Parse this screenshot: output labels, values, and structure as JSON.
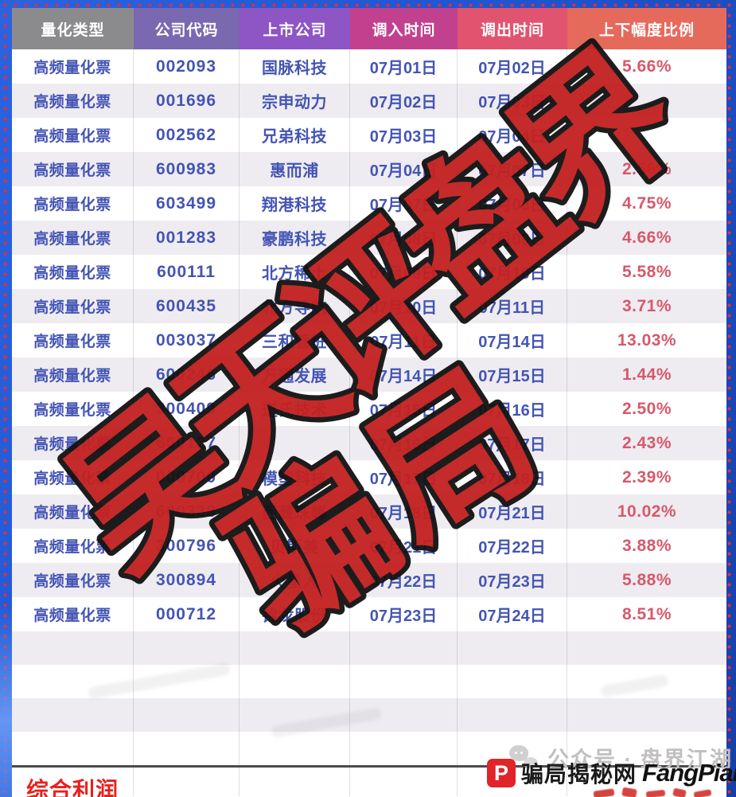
{
  "table": {
    "headers": [
      {
        "label": "量化类型",
        "color": "#8b8b8d"
      },
      {
        "label": "公司代码",
        "color": "#7a68b0"
      },
      {
        "label": "上市公司",
        "color": "#8e55c5"
      },
      {
        "label": "调入时间",
        "color": "#c2418e"
      },
      {
        "label": "调出时间",
        "color": "#e0546f"
      },
      {
        "label": "上下幅度比例",
        "color": "#e66a5c"
      }
    ],
    "rows": [
      {
        "type": "高频量化票",
        "code": "002093",
        "company": "国脉科技",
        "date_in": "07月01日",
        "date_out": "07月02日",
        "pct": "5.66%"
      },
      {
        "type": "高频量化票",
        "code": "001696",
        "company": "宗申动力",
        "date_in": "07月02日",
        "date_out": "07月03日",
        "pct": ""
      },
      {
        "type": "高频量化票",
        "code": "002562",
        "company": "兄弟科技",
        "date_in": "07月03日",
        "date_out": "07月04日",
        "pct": ""
      },
      {
        "type": "高频量化票",
        "code": "600983",
        "company": "惠而浦",
        "date_in": "07月04日",
        "date_out": "07月07日",
        "pct": "2.56%"
      },
      {
        "type": "高频量化票",
        "code": "603499",
        "company": "翔港科技",
        "date_in": "07月07日",
        "date_out": "07月08日",
        "pct": "4.75%"
      },
      {
        "type": "高频量化票",
        "code": "001283",
        "company": "豪鹏科技",
        "date_in": "07月08日",
        "date_out": "07月09日",
        "pct": "4.66%"
      },
      {
        "type": "高频量化票",
        "code": "600111",
        "company": "北方稀土",
        "date_in": "07月09日",
        "date_out": "07月10日",
        "pct": "5.58%"
      },
      {
        "type": "高频量化票",
        "code": "600435",
        "company": "北方导航",
        "date_in": "07月10日",
        "date_out": "07月11日",
        "pct": "3.71%"
      },
      {
        "type": "高频量化票",
        "code": "003037",
        "company": "三和管桩",
        "date_in": "07月11日",
        "date_out": "07月14日",
        "pct": "13.03%"
      },
      {
        "type": "高频量化票",
        "code": "600246",
        "company": "万通发展",
        "date_in": "07月14日",
        "date_out": "07月15日",
        "pct": "1.44%"
      },
      {
        "type": "高频量化票",
        "code": "300409",
        "company": "道氏技术",
        "date_in": "07月15日",
        "date_out": "07月16日",
        "pct": "2.50%"
      },
      {
        "type": "高频量化票",
        "code": "600127",
        "company": "",
        "date_in": "07月16日",
        "date_out": "07月17日",
        "pct": "2.43%"
      },
      {
        "type": "高频量化票",
        "code": "000700",
        "company": "模塑科技",
        "date_in": "07月17日",
        "date_out": "07月18日",
        "pct": "2.39%"
      },
      {
        "type": "高频量化票",
        "code": "600338",
        "company": "西藏珠峰",
        "date_in": "07月18日",
        "date_out": "07月21日",
        "pct": "10.02%"
      },
      {
        "type": "高频量化票",
        "code": "300796",
        "company": "贝斯美",
        "date_in": "07月21日",
        "date_out": "07月22日",
        "pct": "3.88%"
      },
      {
        "type": "高频量化票",
        "code": "300894",
        "company": "火星人",
        "date_in": "07月22日",
        "date_out": "07月23日",
        "pct": "5.88%"
      },
      {
        "type": "高频量化票",
        "code": "000712",
        "company": "锦龙股份",
        "date_in": "07月23日",
        "date_out": "07月24日",
        "pct": "8.51%"
      }
    ],
    "empty_row_count": 4,
    "footer_label": "综合利润"
  },
  "watermark": {
    "line1": "昊天评盘界",
    "line2": "骗局",
    "fill_color": "#c32322",
    "outline_color": "#141414"
  },
  "bottom_marks": {
    "wechat_label": "公众号 · 盘界江湖",
    "site_logo_letter": "P",
    "site_name_cn": "骗局揭秘网",
    "site_name_en": "FangPian.net"
  },
  "colors": {
    "frame_blue": "#1d52cc",
    "frame_dot_red": "#e62b3c",
    "row_alt_bg": "#eeecf0",
    "cell_text_blue": "#4454b4",
    "pct_text_red": "#d5596b",
    "footer_label_red": "#ea1f1a"
  }
}
